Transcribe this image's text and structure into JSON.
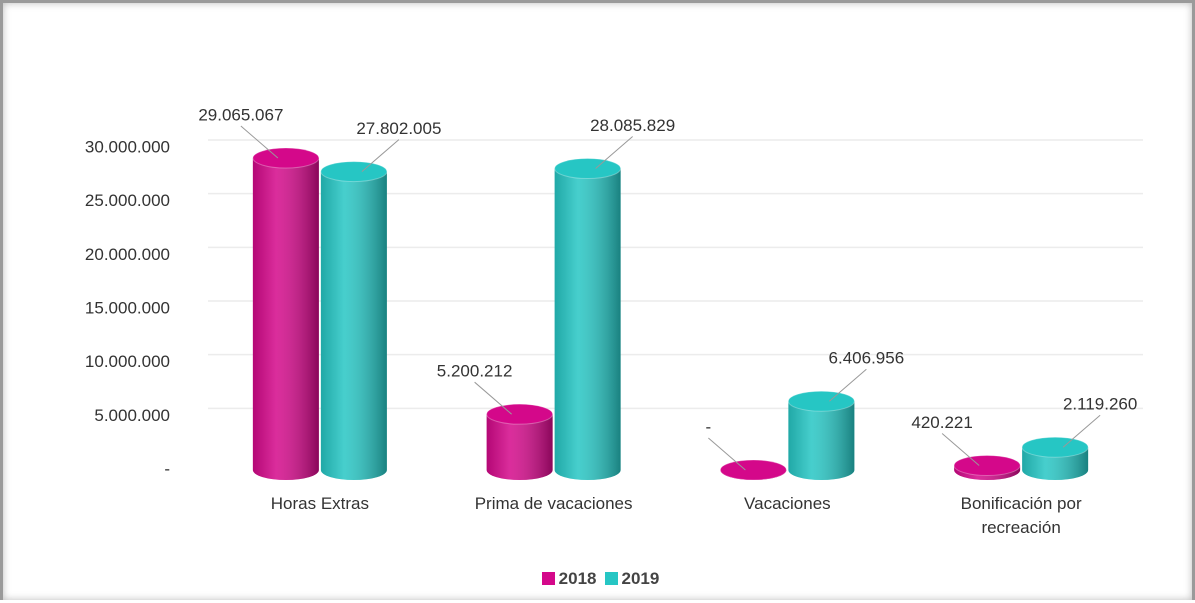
{
  "chart_data": {
    "type": "bar3d",
    "categories": [
      "Horas Extras",
      "Prima de vacaciones",
      "Vacaciones",
      "Bonificación por recreación"
    ],
    "series": [
      {
        "name": "2018",
        "color": "#d4088a",
        "values": [
          29065067,
          5200212,
          0,
          420221
        ],
        "value_labels": [
          "29.065.067",
          "5.200.212",
          "-",
          "420.221"
        ]
      },
      {
        "name": "2019",
        "color": "#26c6c4",
        "values": [
          27802005,
          28085829,
          6406956,
          2119260
        ],
        "value_labels": [
          "27.802.005",
          "28.085.829",
          "6.406.956",
          "2.119.260"
        ]
      }
    ],
    "ylim": [
      0,
      30000000
    ],
    "yticks": [
      {
        "value": 0,
        "label": "-"
      },
      {
        "value": 5000000,
        "label": "5.000.000"
      },
      {
        "value": 10000000,
        "label": "10.000.000"
      },
      {
        "value": 15000000,
        "label": "15.000.000"
      },
      {
        "value": 20000000,
        "label": "20.000.000"
      },
      {
        "value": 25000000,
        "label": "25.000.000"
      },
      {
        "value": 30000000,
        "label": "30.000.000"
      }
    ],
    "grid": true,
    "legend": "bottom"
  }
}
